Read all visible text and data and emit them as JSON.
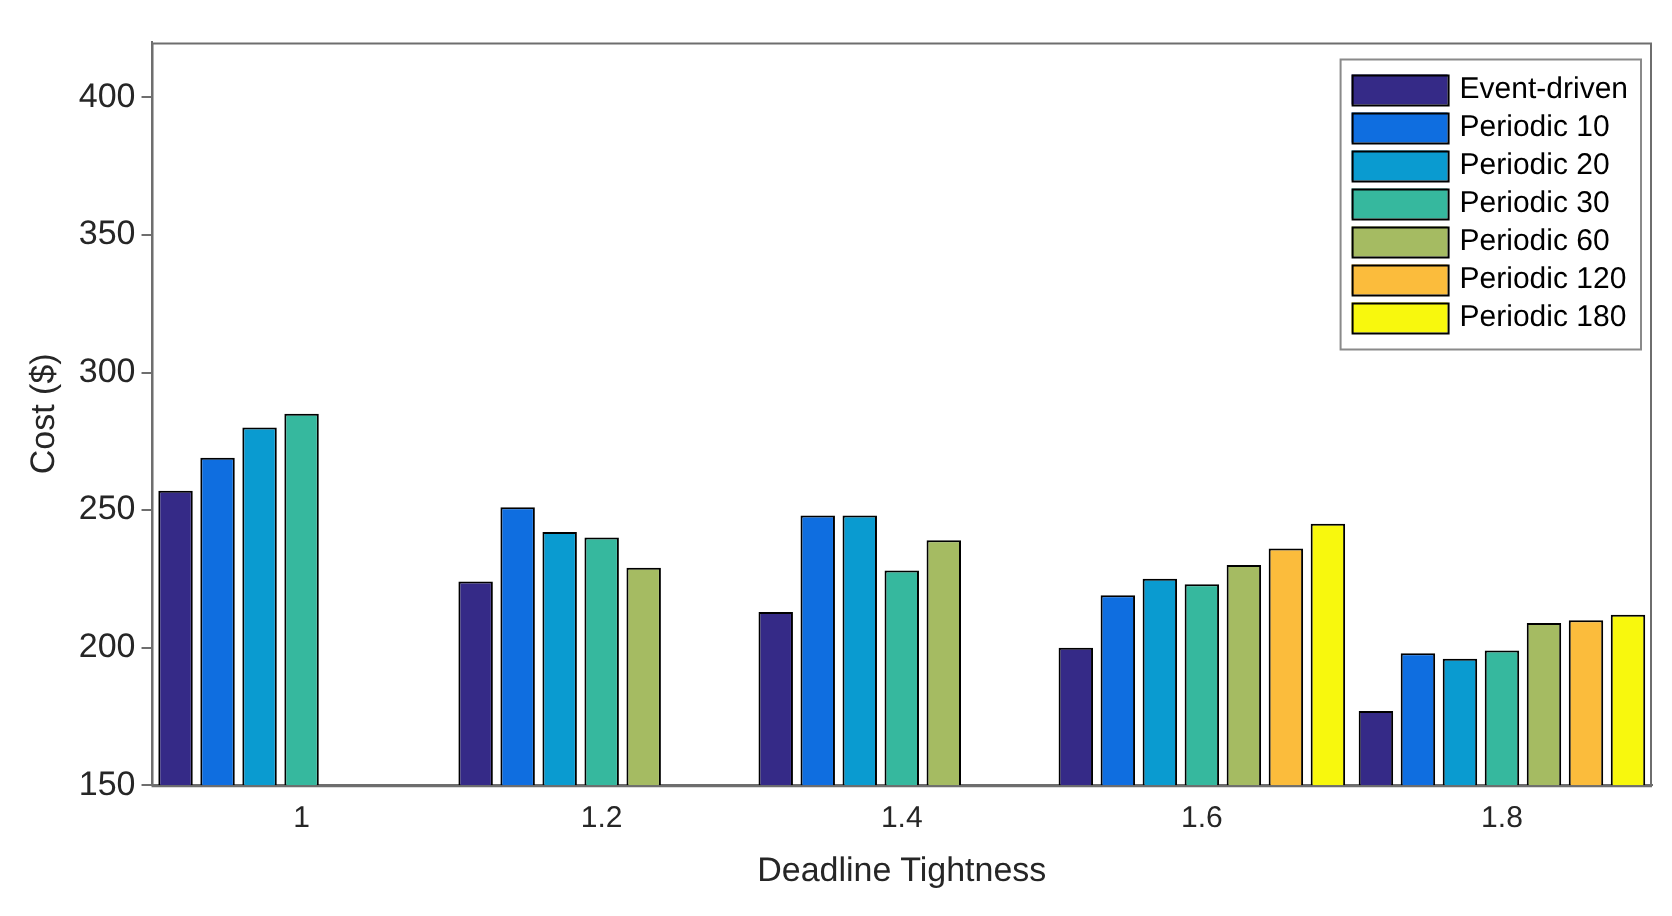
{
  "chart_data": {
    "type": "bar",
    "xlabel": "Deadline Tightness",
    "ylabel": "Cost ($)",
    "categories": [
      "1",
      "1.2",
      "1.4",
      "1.6",
      "1.8"
    ],
    "ylim": [
      150,
      420
    ],
    "yticks": [
      150,
      200,
      250,
      300,
      350,
      400
    ],
    "grid": false,
    "legend": "top right",
    "series": [
      {
        "name": "Event-driven",
        "color": "#352a87",
        "values": [
          257,
          224,
          213,
          200,
          177
        ]
      },
      {
        "name": "Periodic 10",
        "color": "#0f6ee0",
        "values": [
          269,
          251,
          248,
          219,
          198
        ]
      },
      {
        "name": "Periodic 20",
        "color": "#0a9bd0",
        "values": [
          280,
          242,
          248,
          225,
          196
        ]
      },
      {
        "name": "Periodic 30",
        "color": "#36b89e",
        "values": [
          285,
          240,
          228,
          223,
          199
        ]
      },
      {
        "name": "Periodic 60",
        "color": "#a5bb62",
        "values": [
          null,
          229,
          239,
          230,
          209
        ]
      },
      {
        "name": "Periodic 120",
        "color": "#fbbc3c",
        "values": [
          null,
          null,
          null,
          236,
          210
        ]
      },
      {
        "name": "Periodic 180",
        "color": "#f8f80d",
        "values": [
          null,
          null,
          null,
          245,
          212
        ]
      }
    ]
  }
}
